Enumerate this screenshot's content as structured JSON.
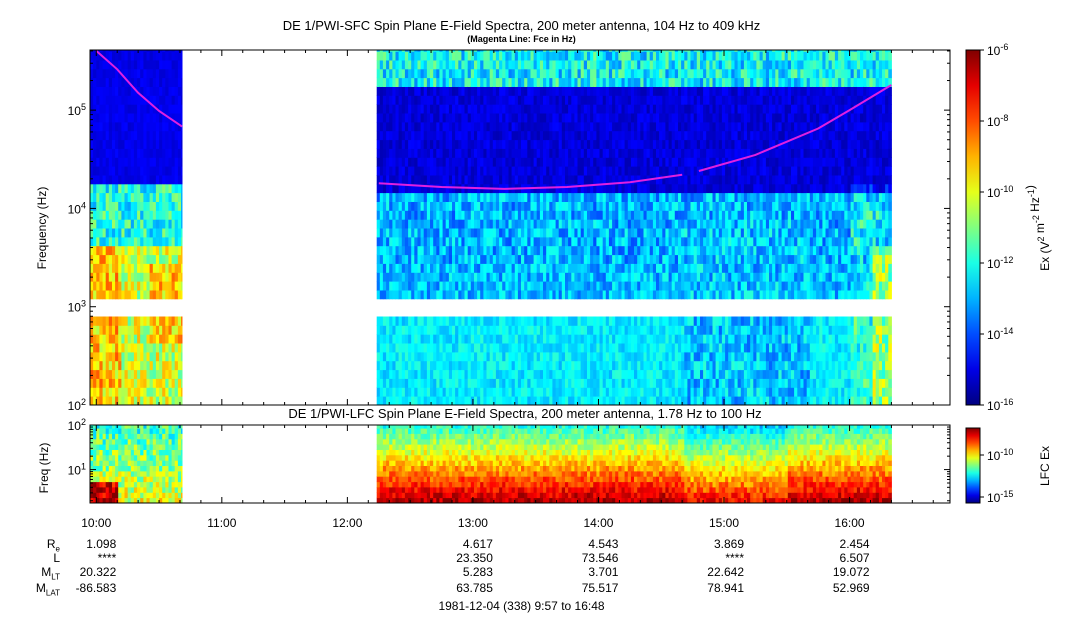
{
  "figure": {
    "title": "DE 1/PWI-SFC  Spin Plane E-Field Spectra, 200 meter antenna, 104 Hz to 409 kHz",
    "subtitle": "(Magenta Line: Fce in Hz)",
    "lfc_title": "DE 1/PWI-LFC  Spin Plane E-Field Spectra, 200 meter antenna, 1.78 Hz to 100 Hz",
    "footer": "1981-12-04 (338) 9:57 to 16:48"
  },
  "ephemeris": {
    "rows": [
      {
        "label": "R",
        "sub": "e",
        "values": [
          "1.098",
          "4.617",
          "4.543",
          "3.869",
          "2.454"
        ]
      },
      {
        "label": "L",
        "sub": "",
        "values": [
          "****",
          "23.350",
          "73.546",
          "****",
          "6.507"
        ]
      },
      {
        "label": "M",
        "sub": "LT",
        "values": [
          "20.322",
          "5.283",
          "3.701",
          "22.642",
          "19.072"
        ]
      },
      {
        "label": "M",
        "sub": "LAT",
        "values": [
          "-86.583",
          "63.785",
          "75.517",
          "78.941",
          "52.969"
        ]
      }
    ],
    "value_times": [
      "10:00",
      "13:00",
      "14:00",
      "15:00",
      "16:00"
    ]
  },
  "colors": {
    "fce_line": "#e020e0",
    "background_dark": "#0a1a9a"
  },
  "chart_data": [
    {
      "type": "heatmap",
      "title": "DE 1/PWI-SFC  Spin Plane E-Field Spectra, 200 meter antenna, 104 Hz to 409 kHz",
      "xlabel": "",
      "ylabel": "Frequency (Hz)",
      "yscale": "log",
      "ylim": [
        100,
        409000
      ],
      "yticks": [
        "10^2",
        "10^3",
        "10^4",
        "10^5"
      ],
      "xlim": [
        "09:57",
        "16:48"
      ],
      "xticks": [
        "10:00",
        "11:00",
        "12:00",
        "13:00",
        "14:00",
        "15:00",
        "16:00"
      ],
      "data_segments": [
        [
          "09:57",
          "10:41"
        ],
        [
          "12:14",
          "16:20"
        ]
      ],
      "gap_frequency_band_hz": [
        880,
        1050
      ],
      "colorbar": {
        "label": "Ex (V^2 m^-2 Hz^-1)",
        "scale": "log",
        "range": [
          1e-16,
          1e-06
        ],
        "ticks": [
          "10^-6",
          "10^-8",
          "10^-10",
          "10^-12",
          "10^-14",
          "10^-16"
        ]
      },
      "series": [
        {
          "name": "Fce",
          "x": [
            "10:00",
            "10:10",
            "10:20",
            "10:30",
            "10:41"
          ],
          "y": [
            400000,
            260000,
            150000,
            98000,
            68000
          ]
        },
        {
          "name": "Fce",
          "x": [
            "12:15",
            "12:45",
            "13:15",
            "13:45",
            "14:15",
            "14:40"
          ],
          "y": [
            18000,
            16500,
            15800,
            16500,
            18500,
            22000
          ]
        },
        {
          "name": "Fce",
          "x": [
            "14:48",
            "15:15",
            "15:45",
            "16:00",
            "16:20"
          ],
          "y": [
            24000,
            35000,
            65000,
            100000,
            180000
          ]
        }
      ]
    },
    {
      "type": "heatmap",
      "title": "DE 1/PWI-LFC  Spin Plane E-Field Spectra, 200 meter antenna, 1.78 Hz to 100 Hz",
      "ylabel": "Freq (Hz)",
      "yscale": "log",
      "ylim": [
        1.78,
        100
      ],
      "yticks": [
        "10^1",
        "10^2"
      ],
      "xlim": [
        "09:57",
        "16:48"
      ],
      "data_segments": [
        [
          "09:57",
          "10:41"
        ],
        [
          "12:14",
          "16:20"
        ]
      ],
      "colorbar": {
        "label": "LFC Ex",
        "scale": "log",
        "ticks": [
          "10^-10",
          "10^-15"
        ]
      }
    }
  ]
}
